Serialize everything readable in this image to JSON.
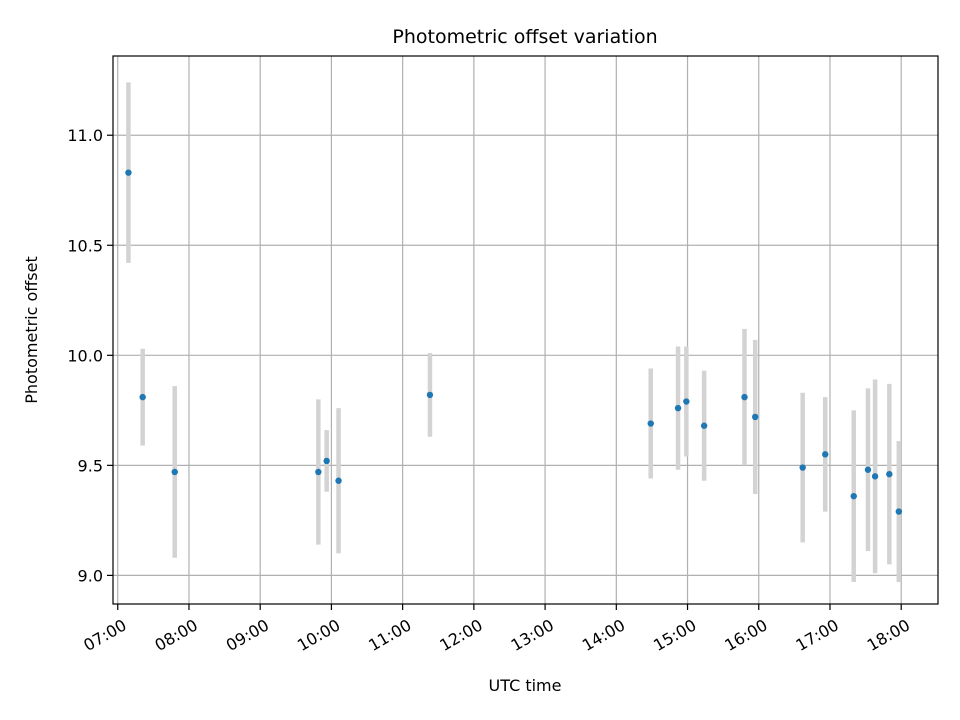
{
  "chart_data": {
    "type": "scatter",
    "title": "Photometric offset variation",
    "xlabel": "UTC time",
    "ylabel": "Photometric offset",
    "x_tick_labels": [
      "07:00",
      "08:00",
      "09:00",
      "10:00",
      "11:00",
      "12:00",
      "13:00",
      "14:00",
      "15:00",
      "16:00",
      "17:00",
      "18:00"
    ],
    "y_tick_labels": [
      "9.0",
      "9.5",
      "10.0",
      "10.5",
      "11.0"
    ],
    "y_ticks": [
      9.0,
      9.5,
      10.0,
      10.5,
      11.0
    ],
    "xlim": [
      "06:56",
      "18:31"
    ],
    "ylim": [
      8.87,
      11.36
    ],
    "grid": true,
    "colors": {
      "point": "#1f77b4",
      "errorbar": "#d3d3d3",
      "grid": "#b0b0b0"
    },
    "points": [
      {
        "x": "07:09",
        "y": 10.83,
        "yerr": 0.41
      },
      {
        "x": "07:21",
        "y": 9.81,
        "yerr": 0.22
      },
      {
        "x": "07:48",
        "y": 9.47,
        "yerr": 0.39
      },
      {
        "x": "09:49",
        "y": 9.47,
        "yerr": 0.33
      },
      {
        "x": "09:56",
        "y": 9.52,
        "yerr": 0.14
      },
      {
        "x": "10:06",
        "y": 9.43,
        "yerr": 0.33
      },
      {
        "x": "11:23",
        "y": 9.82,
        "yerr": 0.19
      },
      {
        "x": "14:29",
        "y": 9.69,
        "yerr": 0.25
      },
      {
        "x": "14:52",
        "y": 9.76,
        "yerr": 0.28
      },
      {
        "x": "14:59",
        "y": 9.79,
        "yerr": 0.25
      },
      {
        "x": "15:14",
        "y": 9.68,
        "yerr": 0.25
      },
      {
        "x": "15:48",
        "y": 9.81,
        "yerr": 0.31
      },
      {
        "x": "15:57",
        "y": 9.72,
        "yerr": 0.35
      },
      {
        "x": "16:37",
        "y": 9.49,
        "yerr": 0.34
      },
      {
        "x": "16:56",
        "y": 9.55,
        "yerr": 0.26
      },
      {
        "x": "17:20",
        "y": 9.36,
        "yerr": 0.39
      },
      {
        "x": "17:32",
        "y": 9.48,
        "yerr": 0.37
      },
      {
        "x": "17:38",
        "y": 9.45,
        "yerr": 0.44
      },
      {
        "x": "17:50",
        "y": 9.46,
        "yerr": 0.41
      },
      {
        "x": "17:58",
        "y": 9.29,
        "yerr": 0.32
      }
    ]
  }
}
